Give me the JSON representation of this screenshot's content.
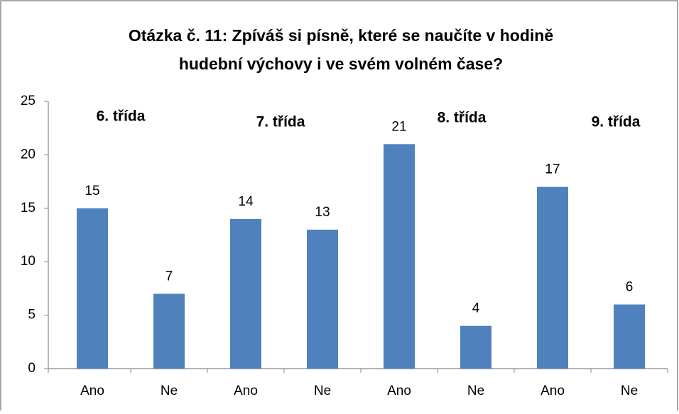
{
  "chart_data": {
    "type": "bar",
    "title": [
      "Otázka č. 11: Zpíváš si písně, které se naučíte v hodině",
      "hudební  výchovy i ve svém volném čase?"
    ],
    "categories": [
      "Ano",
      "Ne",
      "Ano",
      "Ne",
      "Ano",
      "Ne",
      "Ano",
      "Ne"
    ],
    "values": [
      15,
      7,
      14,
      13,
      21,
      4,
      17,
      6
    ],
    "color": "#4f81bd",
    "ylim": [
      0,
      25
    ],
    "yticks": [
      0,
      5,
      10,
      15,
      20,
      25
    ],
    "annotations": [
      "6. třída",
      "7. třída",
      "8. třída",
      "9. třída"
    ],
    "grid": false
  }
}
